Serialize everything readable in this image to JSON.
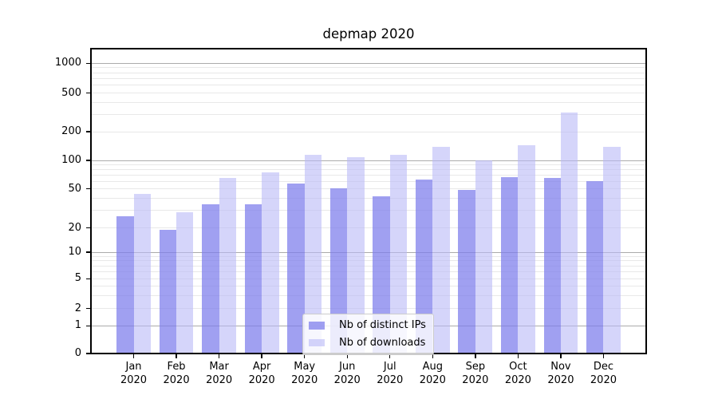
{
  "chart_data": {
    "type": "bar",
    "title": "depmap 2020",
    "categories": [
      "Jan 2020",
      "Feb 2020",
      "Mar 2020",
      "Apr 2020",
      "May 2020",
      "Jun 2020",
      "Jul 2020",
      "Aug 2020",
      "Sep 2020",
      "Oct 2020",
      "Nov 2020",
      "Dec 2020"
    ],
    "month_labels": [
      "Jan",
      "Feb",
      "Mar",
      "Apr",
      "May",
      "Jun",
      "Jul",
      "Aug",
      "Sep",
      "Oct",
      "Nov",
      "Dec"
    ],
    "year_label": "2020",
    "series": [
      {
        "name": "Nb of distinct IPs",
        "color": "rgba(124,124,235,0.72)",
        "values": [
          26,
          19,
          35,
          35,
          57,
          51,
          42,
          63,
          49,
          67,
          65,
          60
        ]
      },
      {
        "name": "Nb of downloads",
        "color": "rgba(185,185,246,0.6)",
        "values": [
          44,
          29,
          65,
          74,
          115,
          108,
          115,
          138,
          100,
          145,
          315,
          140
        ]
      }
    ],
    "y_ticks": [
      0,
      1,
      2,
      5,
      10,
      20,
      50,
      100,
      200,
      500,
      1000
    ],
    "y_scale": "symlog",
    "ylim": [
      0,
      1400
    ],
    "xlabel": "",
    "ylabel": "",
    "grid": true,
    "legend_position": "lower center",
    "colors": {
      "major_grid": "#ababab",
      "minor_grid": "#e8e8e8",
      "axis": "#000000",
      "legend_border": "#cccccc"
    }
  }
}
